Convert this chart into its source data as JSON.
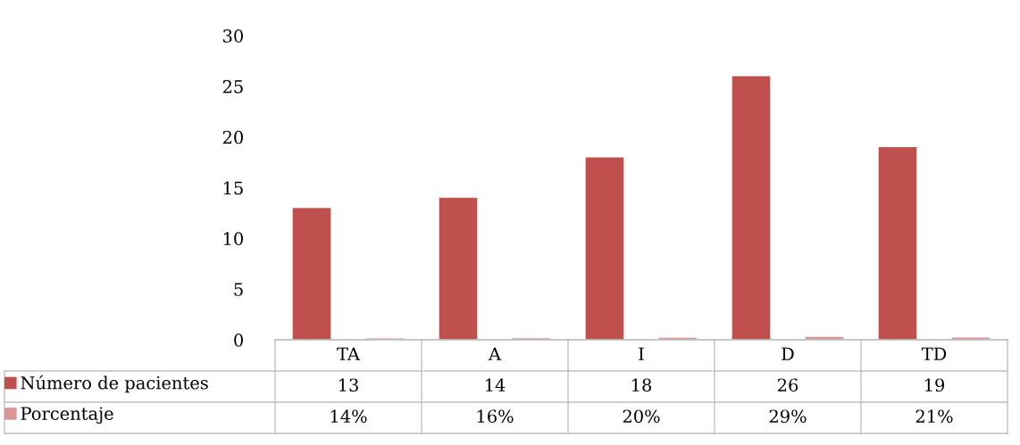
{
  "chart_data": {
    "type": "bar",
    "categories": [
      "TA",
      "A",
      "I",
      "D",
      "TD"
    ],
    "series": [
      {
        "name": "Número de pacientes",
        "color": "#c0504d",
        "values": [
          13,
          14,
          18,
          26,
          19
        ],
        "value_labels": [
          "13",
          "14",
          "18",
          "26",
          "19"
        ]
      },
      {
        "name": "Porcentaje",
        "color": "#d99694",
        "values": [
          0.14,
          0.16,
          0.2,
          0.29,
          0.21
        ],
        "value_labels": [
          "14%",
          "16%",
          "20%",
          "29%",
          "21%"
        ]
      }
    ],
    "ylim": [
      0,
      30
    ],
    "yticks": [
      0,
      5,
      10,
      15,
      20,
      25,
      30
    ],
    "grid": false,
    "legend": "bottom"
  }
}
